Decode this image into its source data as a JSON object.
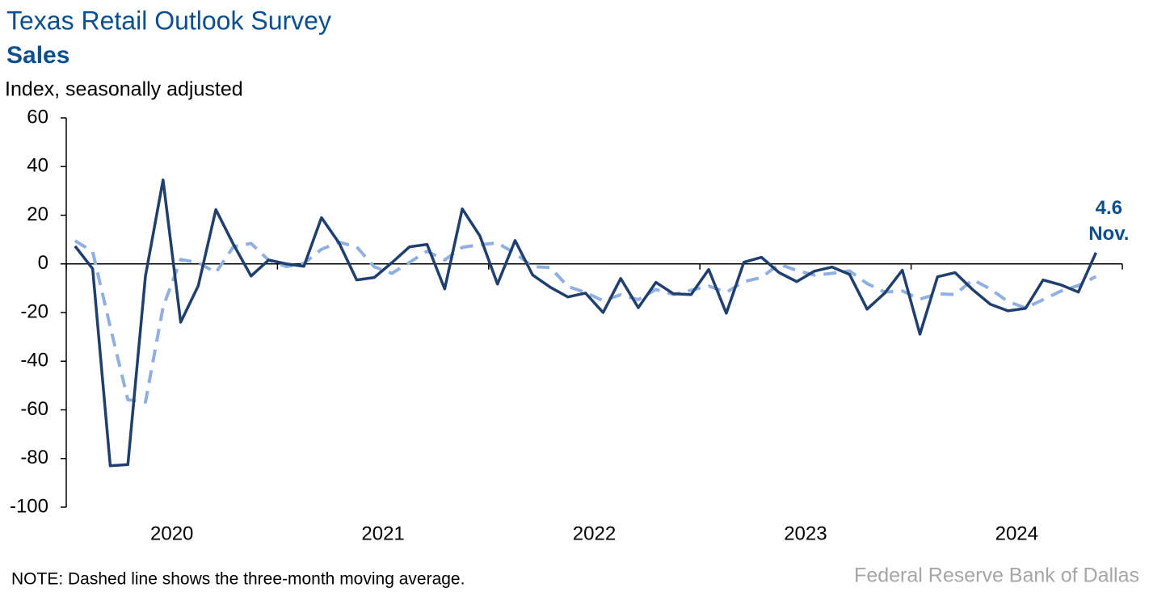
{
  "chart_data": {
    "type": "line",
    "title": "Texas Retail Outlook Survey",
    "subtitle": "Sales",
    "y_label": "Index, seasonally adjusted",
    "note": "NOTE: Dashed line shows the three-month moving average.",
    "source": "Federal Reserve Bank of Dallas",
    "annotations": [
      "4.6",
      "Nov."
    ],
    "x": [
      2020.0417,
      2020.125,
      2020.2083,
      2020.2917,
      2020.375,
      2020.4583,
      2020.5417,
      2020.625,
      2020.7083,
      2020.7917,
      2020.875,
      2020.9583,
      2021.0417,
      2021.125,
      2021.2083,
      2021.2917,
      2021.375,
      2021.4583,
      2021.5417,
      2021.625,
      2021.7083,
      2021.7917,
      2021.875,
      2021.9583,
      2022.0417,
      2022.125,
      2022.2083,
      2022.2917,
      2022.375,
      2022.4583,
      2022.5417,
      2022.625,
      2022.7083,
      2022.7917,
      2022.875,
      2022.9583,
      2023.0417,
      2023.125,
      2023.2083,
      2023.2917,
      2023.375,
      2023.4583,
      2023.5417,
      2023.625,
      2023.7083,
      2023.7917,
      2023.875,
      2023.9583,
      2024.0417,
      2024.125,
      2024.2083,
      2024.2917,
      2024.375,
      2024.4583,
      2024.5417,
      2024.625,
      2024.7083,
      2024.7917,
      2024.875
    ],
    "series": [
      {
        "name": "Sales",
        "color": "#1f3f6e",
        "dashed": false,
        "values": [
          7.3,
          -2,
          -83,
          -82.5,
          -5,
          34.5,
          -24,
          -9,
          22.3,
          8,
          -5,
          1.6,
          0,
          -1,
          19,
          8.6,
          -6.6,
          -5.6,
          0.5,
          7,
          8,
          -10.3,
          22.6,
          11.5,
          -8.3,
          9.6,
          -4.6,
          -9.6,
          -13.6,
          -12,
          -20,
          -6,
          -18,
          -7.6,
          -12.3,
          -12.6,
          -2.3,
          -20.3,
          0.7,
          2.7,
          -3.6,
          -7.3,
          -3,
          -1.3,
          -4.3,
          -18.6,
          -12,
          -2.6,
          -28.9,
          -5.3,
          -3.6,
          -10.6,
          -16.6,
          -19.3,
          -18.3,
          -6.6,
          -8.6,
          -11.6,
          4.6
        ]
      },
      {
        "name": "Three-month moving average",
        "color": "#8fb0e0",
        "dashed": true,
        "values": [
          9.5,
          5,
          -25.9,
          -55.8,
          -56.8,
          -17.7,
          1.8,
          0.5,
          -3.6,
          7.1,
          8.4,
          1.5,
          -1.1,
          0.2,
          6,
          8.9,
          7,
          -1.2,
          -3.9,
          0.6,
          5.2,
          1.6,
          6.8,
          7.9,
          8.6,
          4.3,
          -1.1,
          -1.5,
          -9.3,
          -11.7,
          -15.2,
          -12.7,
          -14.7,
          -10.5,
          -12.6,
          -10.8,
          -9.1,
          -11.7,
          -7.3,
          -5.6,
          -0.1,
          -2.7,
          -4.6,
          -3.9,
          -2.9,
          -8.1,
          -11.6,
          -11.1,
          -14.5,
          -12.3,
          -12.6,
          -6.5,
          -10.3,
          -15.5,
          -18.1,
          -14.7,
          -11.2,
          -8.9,
          -5.2
        ]
      }
    ],
    "xlim": [
      2020,
      2025
    ],
    "xticks": [
      2020,
      2021,
      2022,
      2023,
      2024,
      2025
    ],
    "year_labels": [
      {
        "value": 2020.5,
        "label": "2020"
      },
      {
        "value": 2021.5,
        "label": "2021"
      },
      {
        "value": 2022.5,
        "label": "2022"
      },
      {
        "value": 2023.5,
        "label": "2023"
      },
      {
        "value": 2024.5,
        "label": "2024"
      }
    ],
    "ylim": [
      -100,
      60
    ],
    "yticks": [
      -100,
      -80,
      -60,
      -40,
      -20,
      0,
      20,
      40,
      60
    ],
    "grid": false
  }
}
